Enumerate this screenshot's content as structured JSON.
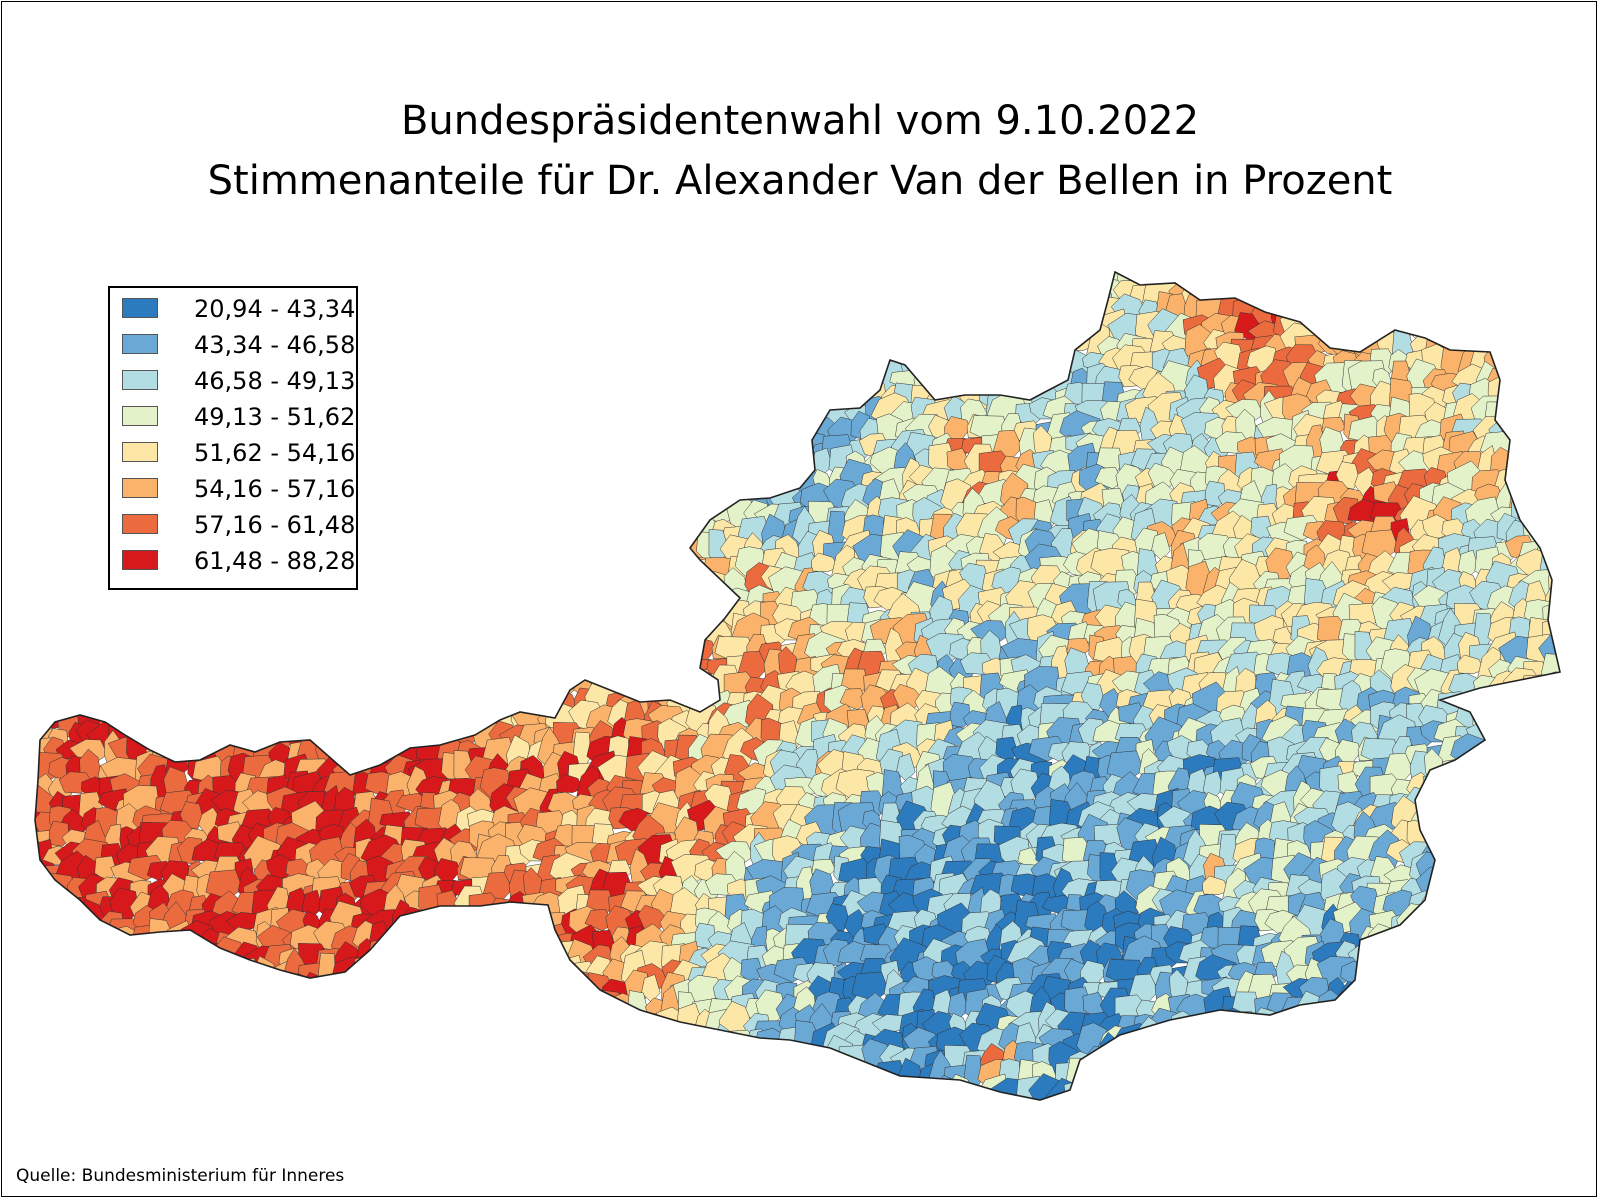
{
  "title_line1": "Bundespräsidentenwahl vom 9.10.2022",
  "title_line2": "Stimmenanteile für Dr. Alexander Van der Bellen in Prozent",
  "source": "Quelle: Bundesministerium für Inneres",
  "legend": [
    {
      "label": "20,94 - 43,34",
      "color": "#2c7bbe"
    },
    {
      "label": "43,34 - 46,58",
      "color": "#6aa9d6"
    },
    {
      "label": "46,58 - 49,13",
      "color": "#b2dde3"
    },
    {
      "label": "49,13 - 51,62",
      "color": "#e3f2c8"
    },
    {
      "label": "51,62 - 54,16",
      "color": "#fde7a6"
    },
    {
      "label": "54,16 - 57,16",
      "color": "#fbb26a"
    },
    {
      "label": "57,16 - 61,48",
      "color": "#eb6a3e"
    },
    {
      "label": "61,48 - 88,28",
      "color": "#d7191c"
    }
  ],
  "map": {
    "boundary_color": "#333333",
    "region": "Österreich"
  }
}
